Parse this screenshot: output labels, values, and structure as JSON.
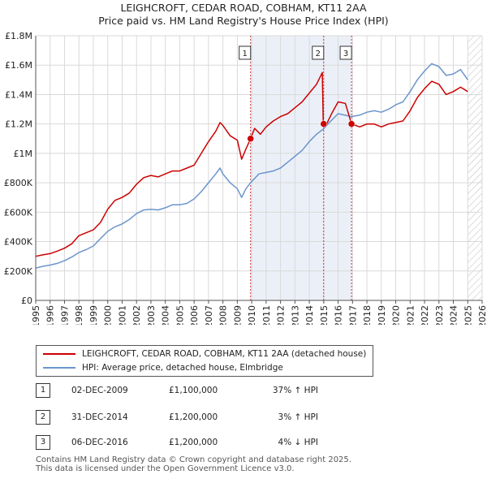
{
  "title_line1": "LEIGHCROFT, CEDAR ROAD, COBHAM, KT11 2AA",
  "title_line2": "Price paid vs. HM Land Registry's House Price Index (HPI)",
  "colors": {
    "property": "#cc0000",
    "hpi": "#6b95cc",
    "shade": "#dde6f4",
    "grid": "#d9d9d9",
    "sale_line": "#cc3333"
  },
  "chart_data": {
    "type": "line",
    "x_range": [
      1995,
      2026
    ],
    "ylim": [
      0,
      1800000
    ],
    "y_ticks": [
      {
        "value": 0,
        "label": "£0"
      },
      {
        "value": 200000,
        "label": "£200K"
      },
      {
        "value": 400000,
        "label": "£400K"
      },
      {
        "value": 600000,
        "label": "£600K"
      },
      {
        "value": 800000,
        "label": "£800K"
      },
      {
        "value": 1000000,
        "label": "£1M"
      },
      {
        "value": 1200000,
        "label": "£1.2M"
      },
      {
        "value": 1400000,
        "label": "£1.4M"
      },
      {
        "value": 1600000,
        "label": "£1.6M"
      },
      {
        "value": 1800000,
        "label": "£1.8M"
      }
    ],
    "x_ticks": [
      "1995",
      "1996",
      "1997",
      "1998",
      "1999",
      "2000",
      "2001",
      "2002",
      "2003",
      "2004",
      "2005",
      "2006",
      "2007",
      "2008",
      "2009",
      "2010",
      "2011",
      "2012",
      "2013",
      "2014",
      "2015",
      "2016",
      "2017",
      "2018",
      "2019",
      "2020",
      "2021",
      "2022",
      "2023",
      "2024",
      "2025",
      "2026"
    ],
    "shaded_ranges": [
      [
        2009.92,
        2016.93
      ]
    ],
    "forecast_start": 2025.0,
    "series": [
      {
        "name": "LEIGHCROFT, CEDAR ROAD, COBHAM, KT11 2AA (detached house)",
        "color": "#cc0000",
        "points": [
          [
            1995.0,
            300000
          ],
          [
            1995.5,
            310000
          ],
          [
            1996.0,
            318000
          ],
          [
            1996.5,
            335000
          ],
          [
            1997.0,
            355000
          ],
          [
            1997.5,
            385000
          ],
          [
            1998.0,
            440000
          ],
          [
            1998.5,
            460000
          ],
          [
            1999.0,
            480000
          ],
          [
            1999.5,
            530000
          ],
          [
            2000.0,
            620000
          ],
          [
            2000.5,
            680000
          ],
          [
            2001.0,
            700000
          ],
          [
            2001.5,
            730000
          ],
          [
            2002.0,
            790000
          ],
          [
            2002.5,
            835000
          ],
          [
            2003.0,
            850000
          ],
          [
            2003.5,
            840000
          ],
          [
            2004.0,
            860000
          ],
          [
            2004.5,
            880000
          ],
          [
            2005.0,
            880000
          ],
          [
            2005.5,
            900000
          ],
          [
            2006.0,
            920000
          ],
          [
            2006.5,
            1000000
          ],
          [
            2007.0,
            1080000
          ],
          [
            2007.5,
            1150000
          ],
          [
            2007.8,
            1210000
          ],
          [
            2008.0,
            1190000
          ],
          [
            2008.5,
            1120000
          ],
          [
            2009.0,
            1090000
          ],
          [
            2009.3,
            960000
          ],
          [
            2009.6,
            1030000
          ],
          [
            2009.92,
            1100000
          ],
          [
            2010.2,
            1170000
          ],
          [
            2010.6,
            1130000
          ],
          [
            2011.0,
            1180000
          ],
          [
            2011.5,
            1220000
          ],
          [
            2012.0,
            1250000
          ],
          [
            2012.5,
            1270000
          ],
          [
            2013.0,
            1310000
          ],
          [
            2013.5,
            1350000
          ],
          [
            2014.0,
            1410000
          ],
          [
            2014.5,
            1470000
          ],
          [
            2014.9,
            1550000
          ],
          [
            2014.97,
            1200000
          ],
          [
            2015.2,
            1200000
          ],
          [
            2015.6,
            1280000
          ],
          [
            2016.0,
            1350000
          ],
          [
            2016.5,
            1340000
          ],
          [
            2016.93,
            1200000
          ],
          [
            2017.5,
            1180000
          ],
          [
            2018.0,
            1200000
          ],
          [
            2018.5,
            1200000
          ],
          [
            2019.0,
            1180000
          ],
          [
            2019.5,
            1200000
          ],
          [
            2020.0,
            1210000
          ],
          [
            2020.5,
            1220000
          ],
          [
            2021.0,
            1290000
          ],
          [
            2021.5,
            1380000
          ],
          [
            2022.0,
            1440000
          ],
          [
            2022.5,
            1490000
          ],
          [
            2023.0,
            1470000
          ],
          [
            2023.5,
            1400000
          ],
          [
            2024.0,
            1420000
          ],
          [
            2024.5,
            1450000
          ],
          [
            2025.0,
            1420000
          ]
        ]
      },
      {
        "name": "HPI: Average price, detached house, Elmbridge",
        "color": "#6b95cc",
        "points": [
          [
            1995.0,
            220000
          ],
          [
            1995.5,
            232000
          ],
          [
            1996.0,
            240000
          ],
          [
            1996.5,
            252000
          ],
          [
            1997.0,
            270000
          ],
          [
            1997.5,
            295000
          ],
          [
            1998.0,
            325000
          ],
          [
            1998.5,
            345000
          ],
          [
            1999.0,
            370000
          ],
          [
            1999.5,
            420000
          ],
          [
            2000.0,
            470000
          ],
          [
            2000.5,
            500000
          ],
          [
            2001.0,
            520000
          ],
          [
            2001.5,
            550000
          ],
          [
            2002.0,
            590000
          ],
          [
            2002.5,
            615000
          ],
          [
            2003.0,
            620000
          ],
          [
            2003.5,
            615000
          ],
          [
            2004.0,
            630000
          ],
          [
            2004.5,
            650000
          ],
          [
            2005.0,
            650000
          ],
          [
            2005.5,
            660000
          ],
          [
            2006.0,
            690000
          ],
          [
            2006.5,
            740000
          ],
          [
            2007.0,
            800000
          ],
          [
            2007.5,
            860000
          ],
          [
            2007.8,
            900000
          ],
          [
            2008.0,
            860000
          ],
          [
            2008.5,
            800000
          ],
          [
            2009.0,
            760000
          ],
          [
            2009.3,
            700000
          ],
          [
            2009.6,
            760000
          ],
          [
            2009.92,
            800000
          ],
          [
            2010.5,
            860000
          ],
          [
            2011.0,
            870000
          ],
          [
            2011.5,
            880000
          ],
          [
            2012.0,
            900000
          ],
          [
            2012.5,
            940000
          ],
          [
            2013.0,
            980000
          ],
          [
            2013.5,
            1020000
          ],
          [
            2014.0,
            1080000
          ],
          [
            2014.5,
            1130000
          ],
          [
            2014.97,
            1165000
          ],
          [
            2015.5,
            1220000
          ],
          [
            2016.0,
            1270000
          ],
          [
            2016.93,
            1250000
          ],
          [
            2017.5,
            1260000
          ],
          [
            2018.0,
            1280000
          ],
          [
            2018.5,
            1290000
          ],
          [
            2019.0,
            1280000
          ],
          [
            2019.5,
            1300000
          ],
          [
            2020.0,
            1330000
          ],
          [
            2020.5,
            1350000
          ],
          [
            2021.0,
            1420000
          ],
          [
            2021.5,
            1500000
          ],
          [
            2022.0,
            1560000
          ],
          [
            2022.5,
            1610000
          ],
          [
            2023.0,
            1590000
          ],
          [
            2023.5,
            1530000
          ],
          [
            2024.0,
            1540000
          ],
          [
            2024.5,
            1570000
          ],
          [
            2025.0,
            1500000
          ]
        ]
      }
    ],
    "sales": [
      {
        "label": "1",
        "x": 2009.92,
        "price": 1100000
      },
      {
        "label": "2",
        "x": 2014.997,
        "price": 1200000
      },
      {
        "label": "3",
        "x": 2016.93,
        "price": 1200000
      }
    ]
  },
  "legend": {
    "property_label": "LEIGHCROFT, CEDAR ROAD, COBHAM, KT11 2AA (detached house)",
    "hpi_label": "HPI: Average price, detached house, Elmbridge"
  },
  "sales_table": [
    {
      "num": "1",
      "date": "02-DEC-2009",
      "price": "£1,100,000",
      "hpi": "37% ↑ HPI"
    },
    {
      "num": "2",
      "date": "31-DEC-2014",
      "price": "£1,200,000",
      "hpi": "3% ↑ HPI"
    },
    {
      "num": "3",
      "date": "06-DEC-2016",
      "price": "£1,200,000",
      "hpi": "4% ↓ HPI"
    }
  ],
  "footer": {
    "line1": "Contains HM Land Registry data © Crown copyright and database right 2025.",
    "line2": "This data is licensed under the Open Government Licence v3.0."
  }
}
